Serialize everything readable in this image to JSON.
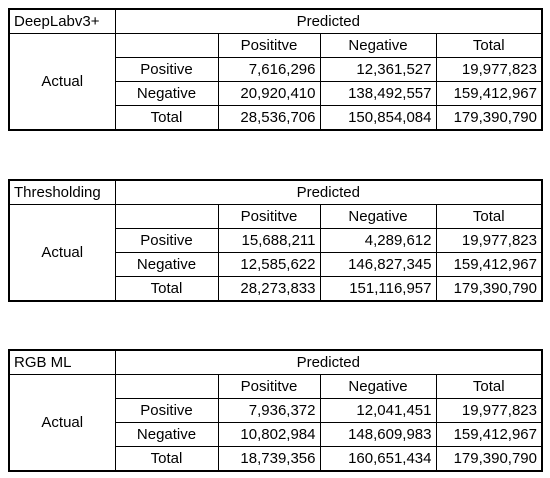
{
  "predicted_label": "Predicted",
  "actual_label": "Actual",
  "column_headers": [
    "Posititve",
    "Negative",
    "Total"
  ],
  "row_headers": [
    "Positive",
    "Negative",
    "Total"
  ],
  "tables": [
    {
      "method": "DeepLabv3+",
      "rows": [
        [
          "7,616,296",
          "12,361,527",
          "19,977,823"
        ],
        [
          "20,920,410",
          "138,492,557",
          "159,412,967"
        ],
        [
          "28,536,706",
          "150,854,084",
          "179,390,790"
        ]
      ]
    },
    {
      "method": "Thresholding",
      "rows": [
        [
          "15,688,211",
          "4,289,612",
          "19,977,823"
        ],
        [
          "12,585,622",
          "146,827,345",
          "159,412,967"
        ],
        [
          "28,273,833",
          "151,116,957",
          "179,390,790"
        ]
      ]
    },
    {
      "method": "RGB ML",
      "rows": [
        [
          "7,936,372",
          "12,041,451",
          "19,977,823"
        ],
        [
          "10,802,984",
          "148,609,983",
          "159,412,967"
        ],
        [
          "18,739,356",
          "160,651,434",
          "179,390,790"
        ]
      ]
    }
  ]
}
